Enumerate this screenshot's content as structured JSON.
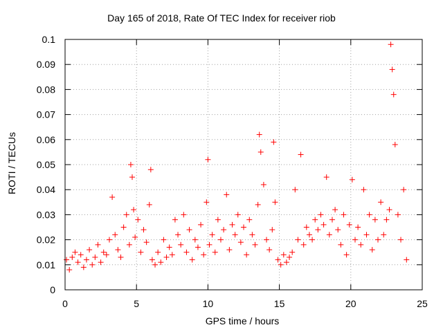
{
  "chart_data": {
    "type": "scatter",
    "title": "Day 165 of 2018, Rate Of TEC Index for receiver riob",
    "xlabel": "GPS time / hours",
    "ylabel": "ROTI / TECUs",
    "xlim": [
      0,
      25
    ],
    "ylim": [
      0,
      0.1
    ],
    "xticks": [
      "0",
      "5",
      "10",
      "15",
      "20",
      "25"
    ],
    "yticks": [
      "0",
      "0.01",
      "0.02",
      "0.03",
      "0.04",
      "0.05",
      "0.06",
      "0.07",
      "0.08",
      "0.09",
      "0.1"
    ],
    "grid": true,
    "marker": "+",
    "color": "#ff0000",
    "series": [
      {
        "name": "ROTI",
        "x": [
          0.1,
          0.3,
          0.5,
          0.7,
          0.9,
          1.1,
          1.3,
          1.5,
          1.7,
          1.9,
          2.1,
          2.3,
          2.5,
          2.7,
          2.9,
          3.1,
          3.3,
          3.5,
          3.7,
          3.9,
          4.1,
          4.3,
          4.5,
          4.6,
          4.7,
          4.8,
          4.9,
          5.1,
          5.3,
          5.5,
          5.7,
          5.9,
          6.0,
          6.1,
          6.3,
          6.5,
          6.7,
          6.9,
          7.1,
          7.3,
          7.5,
          7.7,
          7.9,
          8.1,
          8.3,
          8.5,
          8.7,
          8.9,
          9.1,
          9.3,
          9.5,
          9.7,
          9.9,
          10.0,
          10.1,
          10.3,
          10.5,
          10.7,
          10.9,
          11.1,
          11.3,
          11.5,
          11.7,
          11.9,
          12.1,
          12.3,
          12.5,
          12.7,
          12.9,
          13.1,
          13.3,
          13.5,
          13.6,
          13.7,
          13.9,
          14.1,
          14.3,
          14.5,
          14.6,
          14.7,
          14.9,
          15.1,
          15.3,
          15.5,
          15.7,
          15.9,
          16.1,
          16.3,
          16.5,
          16.7,
          16.9,
          17.1,
          17.3,
          17.5,
          17.7,
          17.9,
          18.1,
          18.3,
          18.5,
          18.7,
          18.9,
          19.1,
          19.3,
          19.5,
          19.7,
          19.9,
          20.1,
          20.3,
          20.5,
          20.7,
          20.9,
          21.1,
          21.3,
          21.5,
          21.7,
          21.9,
          22.1,
          22.3,
          22.5,
          22.7,
          22.8,
          22.9,
          23.0,
          23.1,
          23.3,
          23.5,
          23.7,
          23.9
        ],
        "y": [
          0.012,
          0.008,
          0.013,
          0.015,
          0.011,
          0.014,
          0.009,
          0.012,
          0.016,
          0.01,
          0.013,
          0.018,
          0.011,
          0.015,
          0.014,
          0.02,
          0.037,
          0.022,
          0.016,
          0.013,
          0.025,
          0.03,
          0.018,
          0.05,
          0.045,
          0.032,
          0.021,
          0.028,
          0.015,
          0.024,
          0.019,
          0.034,
          0.048,
          0.012,
          0.01,
          0.015,
          0.011,
          0.02,
          0.013,
          0.017,
          0.014,
          0.028,
          0.022,
          0.018,
          0.03,
          0.015,
          0.024,
          0.012,
          0.02,
          0.017,
          0.026,
          0.014,
          0.035,
          0.052,
          0.018,
          0.022,
          0.015,
          0.028,
          0.02,
          0.024,
          0.038,
          0.016,
          0.026,
          0.022,
          0.03,
          0.019,
          0.025,
          0.014,
          0.028,
          0.022,
          0.018,
          0.034,
          0.062,
          0.055,
          0.042,
          0.02,
          0.016,
          0.024,
          0.059,
          0.035,
          0.012,
          0.01,
          0.014,
          0.011,
          0.013,
          0.015,
          0.04,
          0.02,
          0.054,
          0.018,
          0.025,
          0.022,
          0.02,
          0.028,
          0.024,
          0.03,
          0.026,
          0.045,
          0.022,
          0.028,
          0.032,
          0.024,
          0.018,
          0.03,
          0.014,
          0.026,
          0.044,
          0.02,
          0.025,
          0.018,
          0.04,
          0.022,
          0.03,
          0.016,
          0.028,
          0.02,
          0.035,
          0.022,
          0.028,
          0.032,
          0.098,
          0.088,
          0.078,
          0.058,
          0.03,
          0.02,
          0.04,
          0.012
        ]
      }
    ]
  }
}
